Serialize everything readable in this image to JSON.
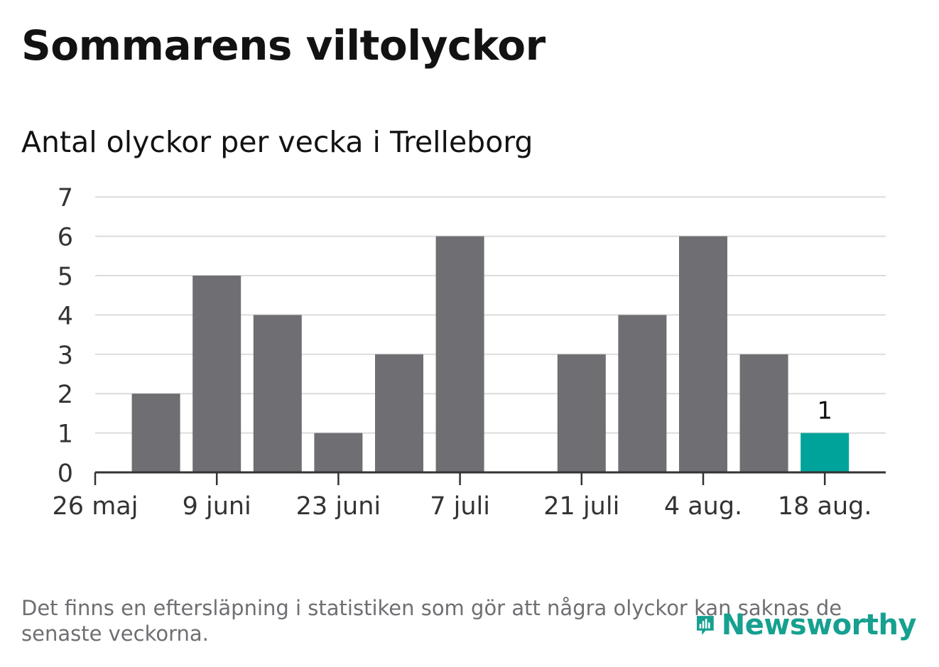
{
  "title": "Sommarens viltolyckor",
  "subtitle": "Antal olyckor per vecka i Trelleborg",
  "footnote": "Det finns en eftersläpning i statistiken som gör att några olyckor kan saknas de senaste veckorna.",
  "logo_text": "Newsworthy",
  "colors": {
    "bar": "#6f6e73",
    "highlight": "#00a39a",
    "grid": "#dcdcdc",
    "axis": "#333333",
    "brand": "#16a090"
  },
  "chart_data": {
    "type": "bar",
    "x_ticks": [
      "26 maj",
      "9 juni",
      "23 juni",
      "7 juli",
      "21 juli",
      "4 aug.",
      "18 aug."
    ],
    "weeks": [
      "2 juni",
      "9 juni",
      "16 juni",
      "23 juni",
      "30 juni",
      "7 juli",
      "14 juli",
      "21 juli",
      "28 juli",
      "4 aug.",
      "11 aug.",
      "18 aug."
    ],
    "values": [
      2,
      5,
      4,
      1,
      3,
      6,
      0,
      3,
      4,
      6,
      3,
      1
    ],
    "highlight_index": 11,
    "data_labels": [
      {
        "index": 11,
        "text": "1"
      }
    ],
    "y_ticks": [
      0,
      1,
      2,
      3,
      4,
      5,
      6,
      7
    ],
    "ylim": [
      0,
      7
    ],
    "grid": true
  }
}
